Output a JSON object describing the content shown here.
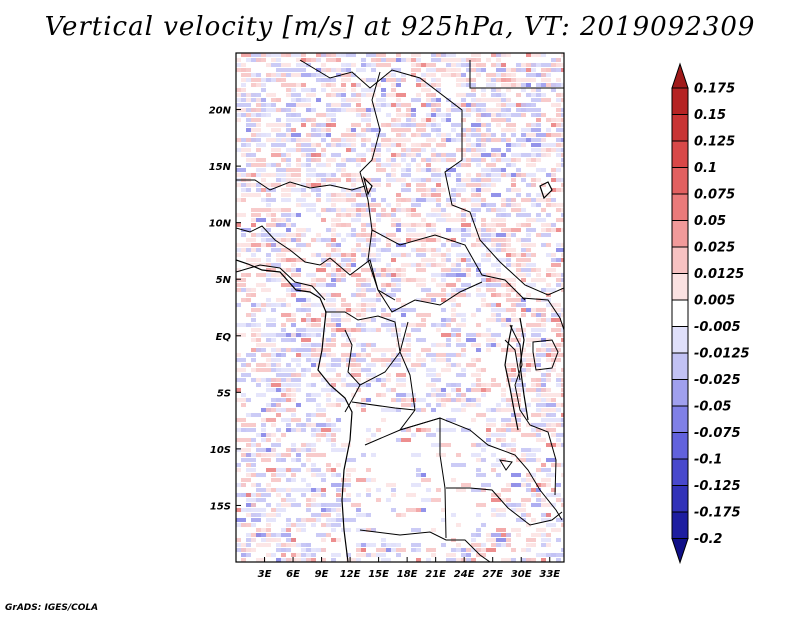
{
  "title": "Vertical velocity [m/s] at 925hPa, VT: 2019092309",
  "credit": "GrADS: IGES/COLA",
  "map": {
    "lon_range": [
      0,
      34.5
    ],
    "lat_range": [
      -20,
      25
    ],
    "lat_labels": [
      "20N",
      "15N",
      "10N",
      "5N",
      "EQ",
      "5S",
      "10S",
      "15S"
    ],
    "lat_values": [
      20,
      15,
      10,
      5,
      0,
      -5,
      -10,
      -15
    ],
    "lon_labels": [
      "3E",
      "6E",
      "9E",
      "12E",
      "15E",
      "18E",
      "21E",
      "24E",
      "27E",
      "30E",
      "33E"
    ],
    "lon_values": [
      3,
      6,
      9,
      12,
      15,
      18,
      21,
      24,
      27,
      30,
      33
    ]
  },
  "colorbar": {
    "labels": [
      "0.175",
      "0.15",
      "0.125",
      "0.1",
      "0.075",
      "0.05",
      "0.025",
      "0.0125",
      "0.005",
      "-0.005",
      "-0.0125",
      "-0.025",
      "-0.05",
      "-0.075",
      "-0.1",
      "-0.125",
      "-0.175",
      "-0.2"
    ],
    "colors": [
      "#a01a1a",
      "#b52424",
      "#c83434",
      "#d84848",
      "#e26060",
      "#ea7a7a",
      "#f19a9a",
      "#f7c2c2",
      "#fbe2e2",
      "#ffffff",
      "#e0e0fa",
      "#c2c2f4",
      "#a0a0ee",
      "#8080e6",
      "#6262dc",
      "#4848cc",
      "#3232b8",
      "#1e1ea0",
      "#101088"
    ]
  }
}
